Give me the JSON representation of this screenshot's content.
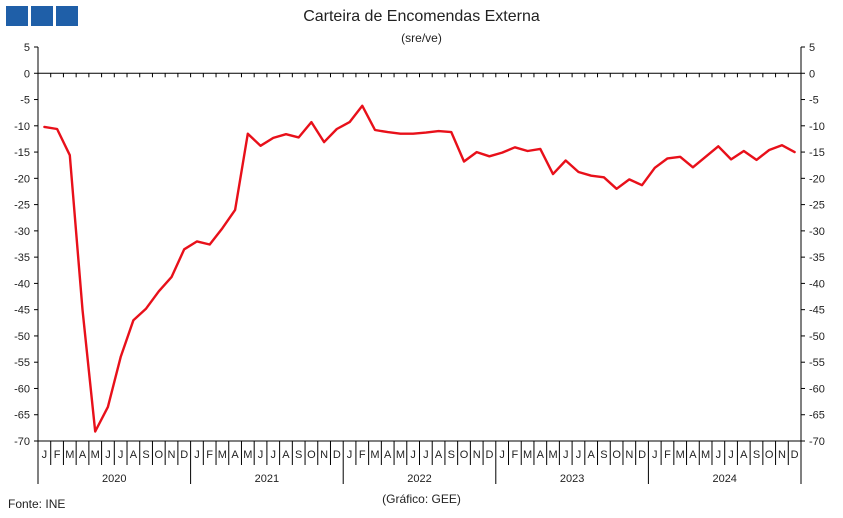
{
  "header": {
    "title": "Carteira de Encomendas Externa",
    "subtitle": "(sre/ve)"
  },
  "footer": {
    "source": "Fonte: INE",
    "credit": "(Gráfico: GEE)"
  },
  "colors": {
    "line": "#e8101a",
    "logo": "#1f5fa8",
    "axis": "#000000"
  },
  "chart_data": {
    "type": "line",
    "title": "Carteira de Encomendas Externa",
    "subtitle": "(sre/ve)",
    "ylim": [
      -70,
      5
    ],
    "yticks": [
      5,
      0,
      -5,
      -10,
      -15,
      -20,
      -25,
      -30,
      -35,
      -40,
      -45,
      -50,
      -55,
      -60,
      -65,
      -70
    ],
    "month_labels": [
      "J",
      "F",
      "M",
      "A",
      "M",
      "J",
      "J",
      "A",
      "S",
      "O",
      "N",
      "D"
    ],
    "years": [
      "2020",
      "2021",
      "2022",
      "2023",
      "2024"
    ],
    "grid": false,
    "series": [
      {
        "values": [
          -10.2,
          -10.6,
          -15.6,
          -45.0,
          -68.2,
          -63.5,
          -54.0,
          -47.0,
          -44.8,
          -41.5,
          -38.8,
          -33.5,
          -32.0,
          -32.6,
          -29.5,
          -26.0,
          -11.5,
          -13.8,
          -12.3,
          -11.6,
          -12.2,
          -9.3,
          -13.1,
          -10.6,
          -9.3,
          -6.2,
          -10.8,
          -11.2,
          -11.5,
          -11.5,
          -11.3,
          -11.0,
          -11.2,
          -16.8,
          -15.0,
          -15.8,
          -15.1,
          -14.1,
          -14.8,
          -14.4,
          -19.2,
          -16.6,
          -18.8,
          -19.5,
          -19.8,
          -22.0,
          -20.2,
          -21.3,
          -18.0,
          -16.2,
          -15.9,
          -17.9,
          -15.9,
          -13.9,
          -16.4,
          -14.8,
          -16.5,
          -14.6,
          -13.7,
          -15.0
        ]
      }
    ]
  }
}
